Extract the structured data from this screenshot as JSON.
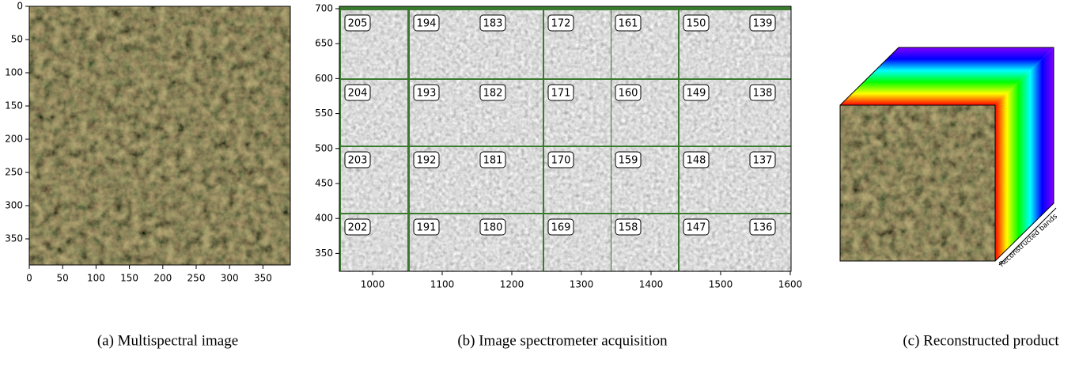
{
  "panels": {
    "a": {
      "x_ticks": [
        "0",
        "50",
        "100",
        "150",
        "200",
        "250",
        "300",
        "350"
      ],
      "y_ticks": [
        "0",
        "50",
        "100",
        "150",
        "200",
        "250",
        "300",
        "350"
      ],
      "caption": "(a) Multispectral image"
    },
    "b": {
      "x_ticks": [
        "1000",
        "1100",
        "1200",
        "1300",
        "1400",
        "1500",
        "1600"
      ],
      "y_ticks": [
        "700",
        "650",
        "600",
        "550",
        "500",
        "450",
        "400",
        "350"
      ],
      "tile_labels": [
        [
          "205",
          "194",
          "183",
          "172",
          "161",
          "150",
          "139"
        ],
        [
          "204",
          "193",
          "182",
          "171",
          "160",
          "149",
          "138"
        ],
        [
          "203",
          "192",
          "181",
          "170",
          "159",
          "148",
          "137"
        ],
        [
          "202",
          "191",
          "180",
          "169",
          "158",
          "147",
          "136"
        ]
      ],
      "caption": "(b) Image spectrometer acquisition"
    },
    "c": {
      "axis_label": "Reconstructed bands",
      "caption": "(c) Reconstructed product"
    }
  }
}
